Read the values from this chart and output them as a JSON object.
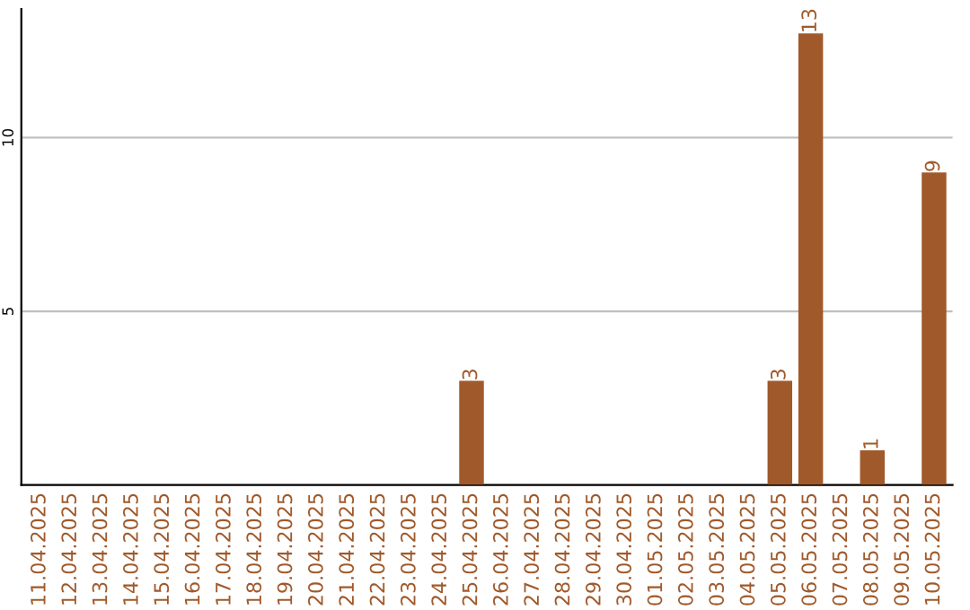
{
  "chart_data": {
    "type": "bar",
    "categories": [
      "11.04.2025",
      "12.04.2025",
      "13.04.2025",
      "14.04.2025",
      "15.04.2025",
      "16.04.2025",
      "17.04.2025",
      "18.04.2025",
      "19.04.2025",
      "20.04.2025",
      "21.04.2025",
      "22.04.2025",
      "23.04.2025",
      "24.04.2025",
      "25.04.2025",
      "26.04.2025",
      "27.04.2025",
      "28.04.2025",
      "29.04.2025",
      "30.04.2025",
      "01.05.2025",
      "02.05.2025",
      "03.05.2025",
      "04.05.2025",
      "05.05.2025",
      "06.05.2025",
      "07.05.2025",
      "08.05.2025",
      "09.05.2025",
      "10.05.2025"
    ],
    "values": [
      0,
      0,
      0,
      0,
      0,
      0,
      0,
      0,
      0,
      0,
      0,
      0,
      0,
      0,
      3,
      0,
      0,
      0,
      0,
      0,
      0,
      0,
      0,
      0,
      3,
      13,
      0,
      1,
      0,
      9
    ],
    "value_labels": [
      null,
      null,
      null,
      null,
      null,
      null,
      null,
      null,
      null,
      null,
      null,
      null,
      null,
      null,
      "3",
      null,
      null,
      null,
      null,
      null,
      null,
      null,
      null,
      null,
      "3",
      "13",
      null,
      "1",
      null,
      "9"
    ],
    "color": "#a0592a",
    "ylim": [
      0,
      13.7
    ],
    "yticks": [
      5,
      10
    ],
    "grid": "y",
    "legend": false
  }
}
